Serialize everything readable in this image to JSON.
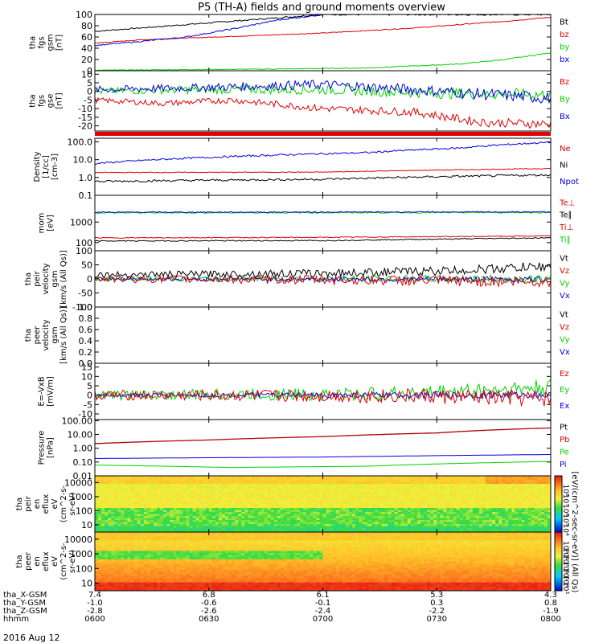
{
  "title": "P5 (TH-A) fields and ground moments overview",
  "date_label": "2016 Aug 12",
  "colors": {
    "black": "#000000",
    "red": "#e00000",
    "green": "#00d000",
    "blue": "#0000e0"
  },
  "chart_data": [
    {
      "type": "line",
      "ylabel": "tha\nfgs\ngsm\n[nT]",
      "yticks": [
        "100",
        "80",
        "60",
        "40",
        "20",
        "0"
      ],
      "ylim": [
        0,
        100
      ],
      "legend": [
        {
          "name": "Bt",
          "color": "black"
        },
        {
          "name": "bz",
          "color": "red"
        },
        {
          "name": "by",
          "color": "green"
        },
        {
          "name": "bx",
          "color": "blue"
        }
      ],
      "series": [
        {
          "name": "Bt",
          "color": "black",
          "x": [
            0,
            0.1,
            0.3,
            0.5,
            0.7,
            0.9,
            1
          ],
          "y": [
            70,
            76,
            88,
            100,
            100,
            100,
            100
          ],
          "noise": 1
        },
        {
          "name": "bz",
          "color": "red",
          "x": [
            0,
            0.1,
            0.3,
            0.5,
            0.7,
            0.9,
            1
          ],
          "y": [
            49,
            55,
            61,
            67,
            76,
            88,
            95
          ],
          "noise": 0.5
        },
        {
          "name": "by",
          "color": "green",
          "x": [
            0,
            0.2,
            0.4,
            0.6,
            0.8,
            0.9,
            1
          ],
          "y": [
            1,
            2,
            3,
            5,
            12,
            20,
            32
          ],
          "noise": 0.5
        },
        {
          "name": "bx",
          "color": "blue",
          "x": [
            0,
            0.1,
            0.2,
            0.3,
            0.4,
            0.5
          ],
          "y": [
            45,
            52,
            60,
            74,
            90,
            100
          ],
          "noise": 1
        }
      ]
    },
    {
      "type": "line",
      "ylabel": "tha\nfgs\ngse\n[nT]",
      "yticks": [
        "10",
        "5",
        "0",
        "-5",
        "-10",
        "-15",
        "-20"
      ],
      "ylim": [
        -23,
        12
      ],
      "legend": [
        {
          "name": "Bz",
          "color": "red"
        },
        {
          "name": "By",
          "color": "green"
        },
        {
          "name": "Bx",
          "color": "blue"
        }
      ],
      "series": [
        {
          "name": "By",
          "color": "green",
          "x": [
            0,
            0.2,
            0.5,
            0.75,
            1
          ],
          "y": [
            0,
            1,
            1,
            -1,
            -2
          ],
          "noise": 2
        },
        {
          "name": "Bx",
          "color": "blue",
          "x": [
            0,
            0.2,
            0.5,
            0.7,
            1
          ],
          "y": [
            1,
            2,
            4,
            1,
            -4
          ],
          "noise": 2
        },
        {
          "name": "Bz",
          "color": "red",
          "x": [
            0,
            0.15,
            0.3,
            0.5,
            0.7,
            0.85,
            1
          ],
          "y": [
            -5,
            -7,
            -5,
            -10,
            -12,
            -18,
            -19
          ],
          "noise": 1.5
        }
      ]
    },
    {
      "type": "line",
      "ylabel": "Density\n[1/cc]\n[cm-3]",
      "yticks": [
        "100.0",
        "10.0",
        "1.0",
        "0.1"
      ],
      "ylog": true,
      "ylim": [
        0.1,
        160
      ],
      "legend": [
        {
          "name": "Ne",
          "color": "red"
        },
        {
          "name": "Ni",
          "color": "black"
        },
        {
          "name": "Npot",
          "color": "blue"
        }
      ],
      "series": [
        {
          "name": "Npot",
          "color": "blue",
          "x": [
            0,
            0.3,
            0.6,
            0.8,
            1
          ],
          "y": [
            6,
            15,
            25,
            45,
            95
          ],
          "noise": 0.1
        },
        {
          "name": "Ne",
          "color": "red",
          "x": [
            0,
            0.5,
            1
          ],
          "y": [
            1.9,
            2,
            3.2
          ],
          "noise": 0.04
        },
        {
          "name": "Ni",
          "color": "black",
          "x": [
            0,
            0.5,
            1
          ],
          "y": [
            0.6,
            0.8,
            1.4
          ],
          "noise": 0.12
        }
      ]
    },
    {
      "type": "line",
      "ylabel": "mom\n[eV]",
      "yticks": [
        "1000",
        "100"
      ],
      "ylog": true,
      "ylim": [
        40,
        20000
      ],
      "legend": [
        {
          "name": "Te⊥",
          "color": "red"
        },
        {
          "name": "Te∥",
          "color": "black"
        },
        {
          "name": "Ti⊥",
          "color": "red"
        },
        {
          "name": "Ti∥",
          "color": "green"
        }
      ],
      "series": [
        {
          "name": "Ti∥",
          "color": "green",
          "x": [
            0,
            1
          ],
          "y": [
            2800,
            2900
          ],
          "noise": 0.05
        },
        {
          "name": "Ti⊥",
          "color": "blue",
          "x": [
            0,
            1
          ],
          "y": [
            3000,
            3100
          ],
          "noise": 0.05
        },
        {
          "name": "Te⊥",
          "color": "red",
          "x": [
            0,
            0.5,
            1
          ],
          "y": [
            170,
            180,
            210
          ],
          "noise": 0.04
        },
        {
          "name": "Te∥",
          "color": "black",
          "x": [
            0,
            0.5,
            1
          ],
          "y": [
            120,
            125,
            170
          ],
          "noise": 0.05
        }
      ]
    },
    {
      "type": "line",
      "ylabel": "tha\npeir\nvelocity\ngsm\n[km/s (All Qs)]",
      "yticks": [
        "100",
        "50",
        "0",
        "-50",
        "-100"
      ],
      "ylim": [
        -100,
        100
      ],
      "legend": [
        {
          "name": "Vt",
          "color": "black"
        },
        {
          "name": "Vz",
          "color": "red"
        },
        {
          "name": "Vy",
          "color": "green"
        },
        {
          "name": "Vx",
          "color": "blue"
        }
      ],
      "series": [
        {
          "name": "Vy",
          "color": "green",
          "x": [
            0,
            1
          ],
          "y": [
            0,
            0
          ],
          "noise": 8
        },
        {
          "name": "Vx",
          "color": "blue",
          "x": [
            0,
            1
          ],
          "y": [
            0,
            -2
          ],
          "noise": 6
        },
        {
          "name": "Vz",
          "color": "red",
          "x": [
            0,
            0.5,
            1
          ],
          "y": [
            0,
            -3,
            -10
          ],
          "noise": 12
        },
        {
          "name": "Vt",
          "color": "black",
          "x": [
            0,
            0.5,
            0.8,
            1
          ],
          "y": [
            15,
            20,
            30,
            45
          ],
          "noise": 10
        }
      ]
    },
    {
      "type": "line",
      "ylabel": "tha\npeer\nvelocity\ngsm\n[km/s (All Qs)]",
      "yticks": [
        "1.0",
        "0.8",
        "0.6",
        "0.4",
        "0.2",
        "0.0"
      ],
      "ylim": [
        0,
        1
      ],
      "legend": [
        {
          "name": "Vt",
          "color": "black"
        },
        {
          "name": "Vz",
          "color": "red"
        },
        {
          "name": "Vy",
          "color": "green"
        },
        {
          "name": "Vx",
          "color": "blue"
        }
      ],
      "series": []
    },
    {
      "type": "line",
      "ylabel": "E=-VxB\n[mV/m]",
      "yticks": [
        "15",
        "10",
        "5",
        "0",
        "-5",
        "-10"
      ],
      "ylim": [
        -13,
        17
      ],
      "legend": [
        {
          "name": "Ez",
          "color": "red"
        },
        {
          "name": "Ey",
          "color": "green"
        },
        {
          "name": "Ex",
          "color": "blue"
        }
      ],
      "series": [
        {
          "name": "Ey",
          "color": "green",
          "x": [
            0,
            0.6,
            0.8,
            1
          ],
          "y": [
            0,
            0.5,
            2,
            4
          ],
          "noise": 2.5
        },
        {
          "name": "Ex",
          "color": "blue",
          "x": [
            0,
            1
          ],
          "y": [
            0,
            0
          ],
          "noise": 1
        },
        {
          "name": "Ez",
          "color": "red",
          "x": [
            0,
            0.7,
            1
          ],
          "y": [
            0,
            -0.5,
            -2
          ],
          "noise": 2.5
        }
      ]
    },
    {
      "type": "line",
      "ylabel": "Pressure\n[nPa]",
      "yticks": [
        "100.00",
        "10.00",
        "1.00",
        "0.10",
        "0.01"
      ],
      "ylog": true,
      "ylim": [
        0.01,
        120
      ],
      "legend": [
        {
          "name": "Pt",
          "color": "black"
        },
        {
          "name": "Pb",
          "color": "red"
        },
        {
          "name": "Pe",
          "color": "green"
        },
        {
          "name": "Pi",
          "color": "blue"
        }
      ],
      "series": [
        {
          "name": "Pt",
          "color": "black",
          "x": [
            0,
            0.25,
            0.5,
            0.75,
            1
          ],
          "y": [
            2.2,
            4,
            7,
            13,
            30
          ],
          "noise": 0
        },
        {
          "name": "Pb",
          "color": "red",
          "x": [
            0,
            0.25,
            0.5,
            0.75,
            1
          ],
          "y": [
            2.1,
            3.9,
            6.8,
            12.5,
            29
          ],
          "noise": 0
        },
        {
          "name": "Pi",
          "color": "blue",
          "x": [
            0,
            0.5,
            1
          ],
          "y": [
            0.18,
            0.23,
            0.35
          ],
          "noise": 0
        },
        {
          "name": "Pe",
          "color": "green",
          "x": [
            0,
            0.3,
            0.6,
            1
          ],
          "y": [
            0.06,
            0.04,
            0.05,
            0.11
          ],
          "noise": 0
        }
      ]
    },
    {
      "type": "heatmap",
      "ylabel": "tha\npeir\nen\neflux\neV\n(cm^2-s-\nsr-eV)",
      "yticks": [
        "10000",
        "1000",
        "100",
        "10"
      ],
      "variant": "ion"
    },
    {
      "type": "heatmap",
      "ylabel": "tha\npeer\nen\neflux\neV\n(cm^2-s-\nsr-eV)",
      "yticks": [
        "10000",
        "1000",
        "100",
        "10"
      ],
      "variant": "electron"
    }
  ],
  "colorbar": {
    "unit_label": "[eV/(cm^2-sec-sr-eV)] (All Qs)",
    "top_ticks": [
      "10⁸",
      "10⁷",
      "10⁶",
      "10⁵",
      "10⁴"
    ],
    "bottom_ticks": [
      "10⁹",
      "10⁸",
      "10⁷",
      "10⁶",
      "10⁵",
      "10⁴",
      "10³"
    ]
  },
  "xaxis": {
    "row_labels": [
      "tha_X-GSM",
      "tha_Y-GSM",
      "tha_Z-GSM",
      "hhmm"
    ],
    "columns": [
      [
        "7.4",
        "-1.0",
        "-2.8",
        "0600"
      ],
      [
        "6.8",
        "-0.6",
        "-2.6",
        "0630"
      ],
      [
        "6.1",
        "-0.1",
        "-2.4",
        "0700"
      ],
      [
        "5.3",
        "0.3",
        "-2.2",
        "0730"
      ],
      [
        "4.3",
        "0.8",
        "-1.9",
        "0800"
      ]
    ]
  }
}
